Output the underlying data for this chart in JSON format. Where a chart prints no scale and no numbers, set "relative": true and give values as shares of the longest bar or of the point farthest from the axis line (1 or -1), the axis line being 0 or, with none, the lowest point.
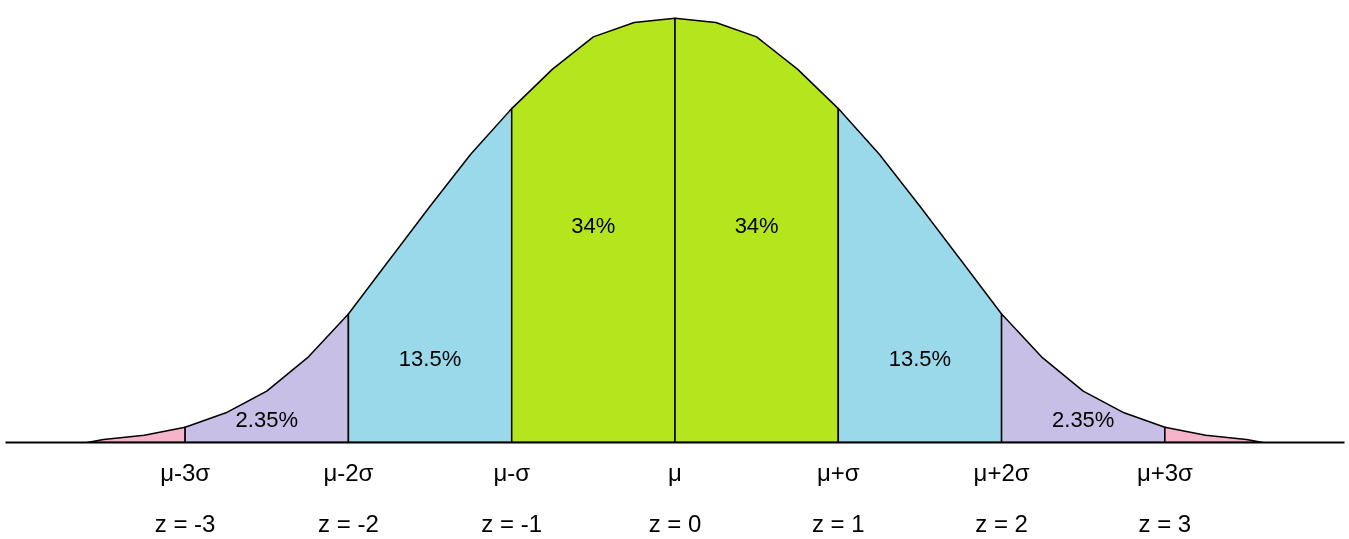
{
  "chart_data": {
    "type": "area",
    "relative": true,
    "grid": false,
    "xlim": [
      -4.1,
      4.1
    ],
    "xticks": [
      {
        "value": -3,
        "label": "μ-3σ\nz = -3"
      },
      {
        "value": -2,
        "label": "μ-2σ\nz = -2"
      },
      {
        "value": -1,
        "label": "μ-σ\nz = -1"
      },
      {
        "value": 0,
        "label": "μ\nz = 0"
      },
      {
        "value": 1,
        "label": "μ+σ\nz = 1"
      },
      {
        "value": 2,
        "label": "μ+2σ\nz = 2"
      },
      {
        "value": 3,
        "label": "μ+3σ\nz = 3"
      }
    ],
    "series": [
      {
        "color": "#f7b3c9",
        "x": [
          -3.6,
          -3.5,
          -3.25,
          -3
        ],
        "values": [
          0,
          0.007,
          0.017,
          0.036
        ]
      },
      {
        "color": "#c8bfe7",
        "x": [
          -3,
          -2.75,
          -2.5,
          -2.25,
          -2
        ],
        "values": [
          0.036,
          0.07,
          0.121,
          0.2,
          0.303
        ]
      },
      {
        "color": "#99d9ea",
        "x": [
          -2,
          -1.75,
          -1.5,
          -1.25,
          -1
        ],
        "values": [
          0.303,
          0.43,
          0.557,
          0.68,
          0.787
        ]
      },
      {
        "color": "#b5e61d",
        "x": [
          -1,
          -0.75,
          -0.5,
          -0.25,
          0
        ],
        "values": [
          0.787,
          0.88,
          0.956,
          0.99,
          1
        ]
      },
      {
        "color": "#b5e61d",
        "x": [
          0,
          0.25,
          0.5,
          0.75,
          1
        ],
        "values": [
          1,
          0.99,
          0.956,
          0.88,
          0.787
        ]
      },
      {
        "color": "#99d9ea",
        "x": [
          1,
          1.25,
          1.5,
          1.75,
          2
        ],
        "values": [
          0.787,
          0.68,
          0.557,
          0.43,
          0.303
        ]
      },
      {
        "color": "#c8bfe7",
        "x": [
          2,
          2.25,
          2.5,
          2.75,
          3
        ],
        "values": [
          0.303,
          0.2,
          0.121,
          0.07,
          0.036
        ]
      },
      {
        "color": "#f7b3c9",
        "x": [
          3,
          3.25,
          3.5,
          3.6
        ],
        "values": [
          0.036,
          0.017,
          0.007,
          0
        ]
      }
    ],
    "annotations": [
      "2.35%",
      "13.5%",
      "34%",
      "34%",
      "13.5%",
      "2.35%"
    ]
  }
}
